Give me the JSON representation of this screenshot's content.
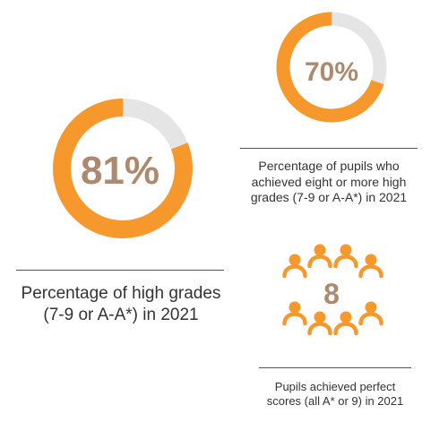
{
  "colors": {
    "accent": "#f7982c",
    "track": "#e5e5e5",
    "figure_text": "#ad8a6e"
  },
  "chart_data": [
    {
      "type": "pie",
      "variant": "donut",
      "value_label": "81%",
      "values": [
        81,
        19
      ],
      "caption_lines": [
        "Percentage of high grades",
        "(7-9 or A-A*) in 2021"
      ]
    },
    {
      "type": "pie",
      "variant": "donut",
      "value_label": "70%",
      "values": [
        70,
        30
      ],
      "caption_lines": [
        "Percentage of pupils who",
        "achieved eight or more high",
        "grades (7-9 or A-A*) in 2021"
      ]
    }
  ],
  "pupils": {
    "icon": "person-icon",
    "count": 8,
    "count_label": "8",
    "caption_lines": [
      "Pupils achieved perfect",
      "scores (all A* or 9) in 2021"
    ]
  }
}
